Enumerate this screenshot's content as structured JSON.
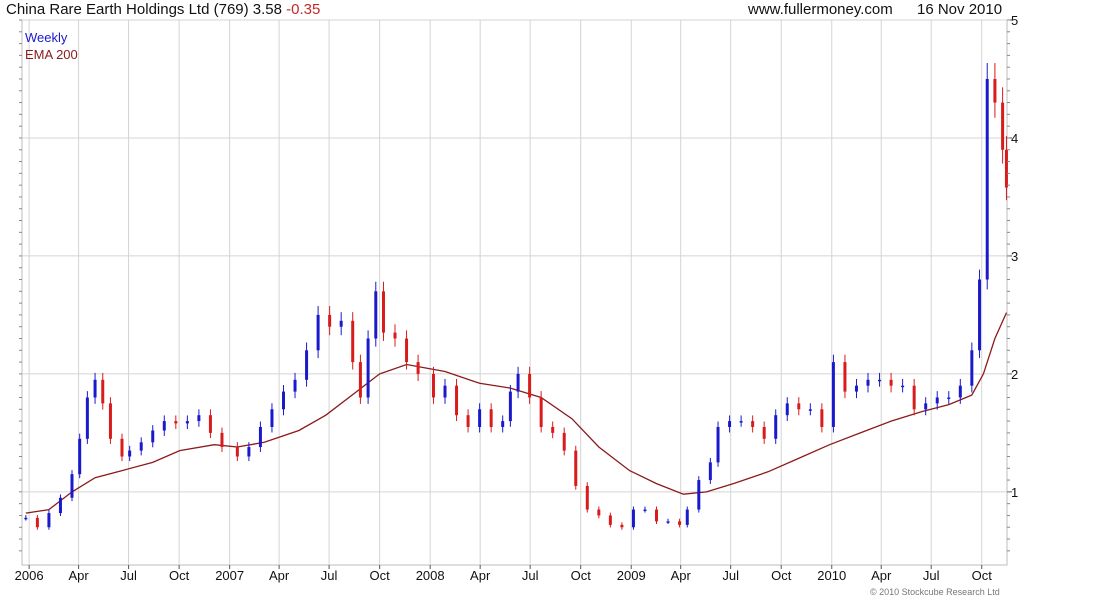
{
  "header": {
    "title": "China Rare Earth Holdings Ltd (769) 3.58",
    "change": "-0.35",
    "site": "www.fullermoney.com",
    "date": "16 Nov 2010"
  },
  "footer": {
    "copyright": "© 2010 Stockcube Research Ltd"
  },
  "chart_data": {
    "type": "line",
    "title": "China Rare Earth Holdings Ltd (769) 3.58 -0.35",
    "xlabel": "",
    "ylabel": "",
    "ylim": [
      0.38,
      5.0
    ],
    "y_ticks": [
      1,
      2,
      3,
      4,
      5
    ],
    "x_ticks": [
      "2006",
      "Apr",
      "Jul",
      "Oct",
      "2007",
      "Apr",
      "Jul",
      "Oct",
      "2008",
      "Apr",
      "Jul",
      "Oct",
      "2009",
      "Apr",
      "Jul",
      "Oct",
      "2010",
      "Apr",
      "Jul",
      "Oct"
    ],
    "x_tick_dates": [
      "2006-01-01",
      "2006-04-01",
      "2006-07-01",
      "2006-10-01",
      "2007-01-01",
      "2007-04-01",
      "2007-07-01",
      "2007-10-01",
      "2008-01-01",
      "2008-04-01",
      "2008-07-01",
      "2008-10-01",
      "2009-01-01",
      "2009-04-01",
      "2009-07-01",
      "2009-10-01",
      "2010-01-01",
      "2010-04-01",
      "2010-07-01",
      "2010-10-01"
    ],
    "xlim": [
      "2005-12-19",
      "2010-11-16"
    ],
    "grid": true,
    "legend": "top-left",
    "colors": {
      "up": "#1a1acc",
      "down": "#d81b1b",
      "ema": "#8b1a1a",
      "grid": "#d4d4d4"
    },
    "series": [
      {
        "name": "Weekly",
        "style": "candlestick",
        "points": [
          [
            "2005-12-26",
            0.78
          ],
          [
            "2006-01-16",
            0.7
          ],
          [
            "2006-02-06",
            0.82
          ],
          [
            "2006-02-27",
            0.95
          ],
          [
            "2006-03-20",
            1.15
          ],
          [
            "2006-04-03",
            1.45
          ],
          [
            "2006-04-17",
            1.8
          ],
          [
            "2006-05-01",
            1.95
          ],
          [
            "2006-05-15",
            1.75
          ],
          [
            "2006-05-29",
            1.45
          ],
          [
            "2006-06-19",
            1.3
          ],
          [
            "2006-07-03",
            1.35
          ],
          [
            "2006-07-24",
            1.42
          ],
          [
            "2006-08-14",
            1.52
          ],
          [
            "2006-09-04",
            1.6
          ],
          [
            "2006-09-25",
            1.58
          ],
          [
            "2006-10-16",
            1.6
          ],
          [
            "2006-11-06",
            1.65
          ],
          [
            "2006-11-27",
            1.5
          ],
          [
            "2006-12-18",
            1.38
          ],
          [
            "2007-01-15",
            1.3
          ],
          [
            "2007-02-05",
            1.38
          ],
          [
            "2007-02-26",
            1.55
          ],
          [
            "2007-03-19",
            1.7
          ],
          [
            "2007-04-09",
            1.85
          ],
          [
            "2007-04-30",
            1.95
          ],
          [
            "2007-05-21",
            2.2
          ],
          [
            "2007-06-11",
            2.5
          ],
          [
            "2007-07-02",
            2.4
          ],
          [
            "2007-07-23",
            2.45
          ],
          [
            "2007-08-13",
            2.1
          ],
          [
            "2007-08-27",
            1.8
          ],
          [
            "2007-09-10",
            2.3
          ],
          [
            "2007-09-24",
            2.7
          ],
          [
            "2007-10-08",
            2.35
          ],
          [
            "2007-10-29",
            2.3
          ],
          [
            "2007-11-19",
            2.1
          ],
          [
            "2007-12-10",
            2.0
          ],
          [
            "2008-01-07",
            1.8
          ],
          [
            "2008-01-28",
            1.9
          ],
          [
            "2008-02-18",
            1.65
          ],
          [
            "2008-03-10",
            1.55
          ],
          [
            "2008-03-31",
            1.7
          ],
          [
            "2008-04-21",
            1.55
          ],
          [
            "2008-05-12",
            1.6
          ],
          [
            "2008-05-26",
            1.85
          ],
          [
            "2008-06-09",
            2.0
          ],
          [
            "2008-06-30",
            1.8
          ],
          [
            "2008-07-21",
            1.55
          ],
          [
            "2008-08-11",
            1.5
          ],
          [
            "2008-09-01",
            1.35
          ],
          [
            "2008-09-22",
            1.05
          ],
          [
            "2008-10-13",
            0.85
          ],
          [
            "2008-11-03",
            0.8
          ],
          [
            "2008-11-24",
            0.72
          ],
          [
            "2008-12-15",
            0.7
          ],
          [
            "2009-01-05",
            0.85
          ],
          [
            "2009-01-26",
            0.85
          ],
          [
            "2009-02-16",
            0.75
          ],
          [
            "2009-03-09",
            0.75
          ],
          [
            "2009-03-30",
            0.72
          ],
          [
            "2009-04-13",
            0.85
          ],
          [
            "2009-05-04",
            1.1
          ],
          [
            "2009-05-25",
            1.25
          ],
          [
            "2009-06-08",
            1.55
          ],
          [
            "2009-06-29",
            1.6
          ],
          [
            "2009-07-20",
            1.6
          ],
          [
            "2009-08-10",
            1.55
          ],
          [
            "2009-08-31",
            1.45
          ],
          [
            "2009-09-21",
            1.65
          ],
          [
            "2009-10-12",
            1.75
          ],
          [
            "2009-11-02",
            1.7
          ],
          [
            "2009-11-23",
            1.7
          ],
          [
            "2009-12-14",
            1.55
          ],
          [
            "2010-01-04",
            2.1
          ],
          [
            "2010-01-25",
            1.85
          ],
          [
            "2010-02-15",
            1.9
          ],
          [
            "2010-03-08",
            1.95
          ],
          [
            "2010-03-29",
            1.95
          ],
          [
            "2010-04-19",
            1.9
          ],
          [
            "2010-05-10",
            1.9
          ],
          [
            "2010-05-31",
            1.7
          ],
          [
            "2010-06-21",
            1.75
          ],
          [
            "2010-07-12",
            1.8
          ],
          [
            "2010-08-02",
            1.8
          ],
          [
            "2010-08-23",
            1.9
          ],
          [
            "2010-09-13",
            2.2
          ],
          [
            "2010-09-27",
            2.8
          ],
          [
            "2010-10-11",
            4.5
          ],
          [
            "2010-10-25",
            4.3
          ],
          [
            "2010-11-08",
            3.9
          ],
          [
            "2010-11-15",
            3.58
          ]
        ]
      },
      {
        "name": "EMA 200",
        "style": "line",
        "points": [
          [
            "2005-12-26",
            0.82
          ],
          [
            "2006-02-06",
            0.85
          ],
          [
            "2006-03-20",
            1.0
          ],
          [
            "2006-05-01",
            1.12
          ],
          [
            "2006-06-19",
            1.18
          ],
          [
            "2006-08-14",
            1.25
          ],
          [
            "2006-10-02",
            1.35
          ],
          [
            "2006-12-04",
            1.4
          ],
          [
            "2007-01-15",
            1.38
          ],
          [
            "2007-03-05",
            1.42
          ],
          [
            "2007-05-07",
            1.52
          ],
          [
            "2007-06-25",
            1.65
          ],
          [
            "2007-08-20",
            1.85
          ],
          [
            "2007-10-01",
            2.0
          ],
          [
            "2007-11-19",
            2.08
          ],
          [
            "2008-01-28",
            2.02
          ],
          [
            "2008-03-31",
            1.92
          ],
          [
            "2008-05-26",
            1.88
          ],
          [
            "2008-07-21",
            1.8
          ],
          [
            "2008-09-15",
            1.62
          ],
          [
            "2008-11-03",
            1.38
          ],
          [
            "2008-12-29",
            1.18
          ],
          [
            "2009-02-16",
            1.07
          ],
          [
            "2009-04-06",
            0.98
          ],
          [
            "2009-05-18",
            1.0
          ],
          [
            "2009-07-06",
            1.07
          ],
          [
            "2009-09-07",
            1.17
          ],
          [
            "2009-10-26",
            1.27
          ],
          [
            "2009-12-28",
            1.4
          ],
          [
            "2010-02-22",
            1.5
          ],
          [
            "2010-04-19",
            1.6
          ],
          [
            "2010-06-14",
            1.68
          ],
          [
            "2010-08-02",
            1.74
          ],
          [
            "2010-09-13",
            1.82
          ],
          [
            "2010-10-04",
            2.0
          ],
          [
            "2010-10-25",
            2.3
          ],
          [
            "2010-11-15",
            2.52
          ]
        ]
      }
    ]
  }
}
